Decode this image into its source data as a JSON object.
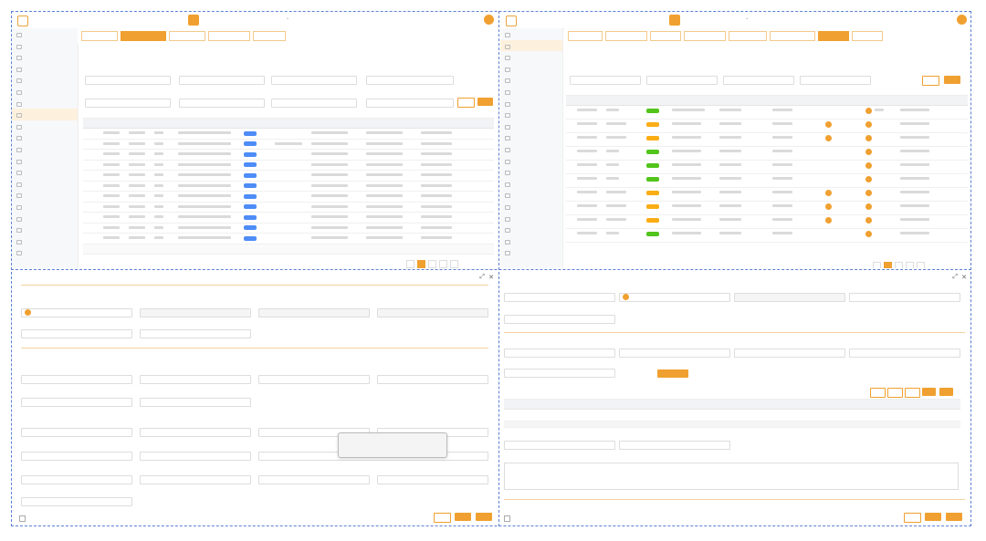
{
  "screenshot_tip": {}
}
